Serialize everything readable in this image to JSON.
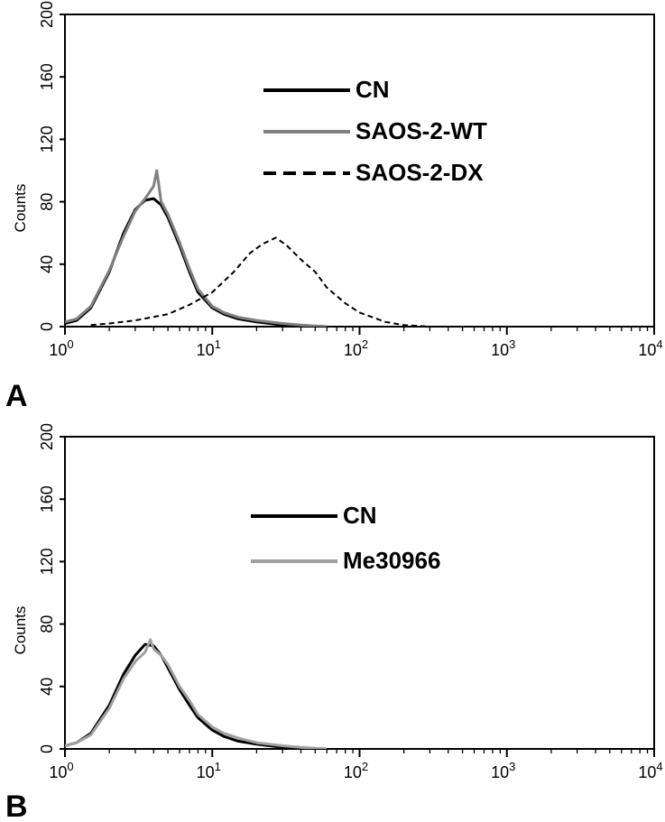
{
  "chart_data": [
    {
      "type": "line",
      "panel_label": "A",
      "ylabel": "Counts",
      "xscale": "log",
      "xlim": [
        1,
        10000
      ],
      "ylim": [
        0,
        200
      ],
      "xticks": [
        1,
        10,
        100,
        1000,
        10000
      ],
      "xtick_labels": [
        {
          "base": "10",
          "exp": "0"
        },
        {
          "base": "10",
          "exp": "1"
        },
        {
          "base": "10",
          "exp": "2"
        },
        {
          "base": "10",
          "exp": "3"
        },
        {
          "base": "10",
          "exp": "4"
        }
      ],
      "yticks": [
        0,
        40,
        80,
        120,
        160,
        200
      ],
      "ytick_labels": [
        "0",
        "40",
        "80",
        "120",
        "160",
        "200"
      ],
      "legend": {
        "placement": "top-center"
      },
      "series": [
        {
          "name": "CN",
          "color": "#000000",
          "dash": "solid",
          "x": [
            1.0,
            1.2,
            1.5,
            2.0,
            2.5,
            3.0,
            3.5,
            4.0,
            4.5,
            5.0,
            6.0,
            7.0,
            8.0,
            10.0,
            12.0,
            15.0,
            20.0,
            30.0,
            40.0,
            60.0
          ],
          "y": [
            2,
            4,
            12,
            35,
            60,
            75,
            81,
            82,
            78,
            70,
            52,
            35,
            22,
            12,
            8,
            5,
            3,
            1,
            0.5,
            0
          ]
        },
        {
          "name": "SAOS-2-WT",
          "color": "#808080",
          "dash": "solid",
          "x": [
            1.0,
            1.2,
            1.5,
            2.0,
            2.5,
            3.0,
            3.5,
            4.0,
            4.2,
            4.5,
            5.0,
            6.0,
            7.0,
            8.0,
            10.0,
            12.0,
            15.0,
            20.0,
            30.0,
            40.0,
            60.0
          ],
          "y": [
            3,
            5,
            13,
            36,
            58,
            74,
            82,
            90,
            100,
            80,
            72,
            54,
            37,
            24,
            13,
            9,
            6,
            4,
            2,
            1,
            0
          ]
        },
        {
          "name": "SAOS-2-DX",
          "color": "#000000",
          "dash": "dashed",
          "x": [
            1.5,
            2.0,
            3.0,
            5.0,
            7.0,
            10.0,
            14.0,
            18.0,
            22.0,
            27.0,
            32.0,
            40.0,
            50.0,
            60.0,
            80.0,
            100.0,
            150.0,
            200.0,
            300.0
          ],
          "y": [
            1,
            2,
            4,
            8,
            14,
            22,
            35,
            47,
            53,
            57,
            52,
            43,
            35,
            25,
            15,
            9,
            3,
            1,
            0
          ]
        }
      ]
    },
    {
      "type": "line",
      "panel_label": "B",
      "ylabel": "Counts",
      "xscale": "log",
      "xlim": [
        1,
        10000
      ],
      "ylim": [
        0,
        200
      ],
      "xticks": [
        1,
        10,
        100,
        1000,
        10000
      ],
      "xtick_labels": [
        {
          "base": "10",
          "exp": "0"
        },
        {
          "base": "10",
          "exp": "1"
        },
        {
          "base": "10",
          "exp": "2"
        },
        {
          "base": "10",
          "exp": "3"
        },
        {
          "base": "10",
          "exp": "4"
        }
      ],
      "yticks": [
        0,
        40,
        80,
        120,
        160,
        200
      ],
      "ytick_labels": [
        "0",
        "40",
        "80",
        "120",
        "160",
        "200"
      ],
      "legend": {
        "placement": "top-center"
      },
      "series": [
        {
          "name": "CN",
          "color": "#000000",
          "dash": "solid",
          "x": [
            1.0,
            1.2,
            1.5,
            2.0,
            2.5,
            3.0,
            3.5,
            4.0,
            4.5,
            5.0,
            6.0,
            7.0,
            8.0,
            10.0,
            12.0,
            15.0,
            20.0,
            30.0,
            40.0,
            60.0
          ],
          "y": [
            2,
            4,
            10,
            28,
            48,
            60,
            67,
            66,
            60,
            52,
            38,
            28,
            20,
            12,
            8,
            5,
            3,
            1,
            0.5,
            0
          ]
        },
        {
          "name": "Me30966",
          "color": "#a0a0a0",
          "dash": "solid",
          "x": [
            1.0,
            1.2,
            1.5,
            2.0,
            2.5,
            3.0,
            3.5,
            3.8,
            4.0,
            4.5,
            5.0,
            6.0,
            7.0,
            8.0,
            10.0,
            12.0,
            15.0,
            20.0,
            30.0,
            40.0,
            60.0
          ],
          "y": [
            2,
            4,
            9,
            26,
            45,
            56,
            62,
            70,
            64,
            60,
            54,
            40,
            31,
            22,
            14,
            10,
            7,
            4,
            2,
            1,
            0
          ]
        }
      ]
    }
  ]
}
